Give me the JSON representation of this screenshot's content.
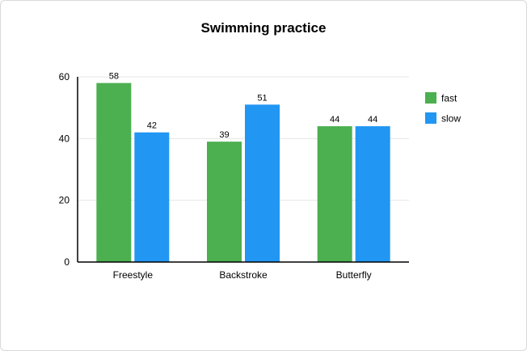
{
  "chart_data": {
    "type": "bar",
    "title": "Swimming practice",
    "xlabel": "",
    "ylabel": "",
    "categories": [
      "Freestyle",
      "Backstroke",
      "Butterfly"
    ],
    "series": [
      {
        "name": "fast",
        "values": [
          58,
          39,
          44
        ],
        "color": "#4caf50"
      },
      {
        "name": "slow",
        "values": [
          42,
          51,
          44
        ],
        "color": "#2196f3"
      }
    ],
    "ylim": [
      0,
      60
    ],
    "yticks": [
      0,
      20,
      40,
      60
    ],
    "grid": true,
    "legend_position": "right"
  }
}
